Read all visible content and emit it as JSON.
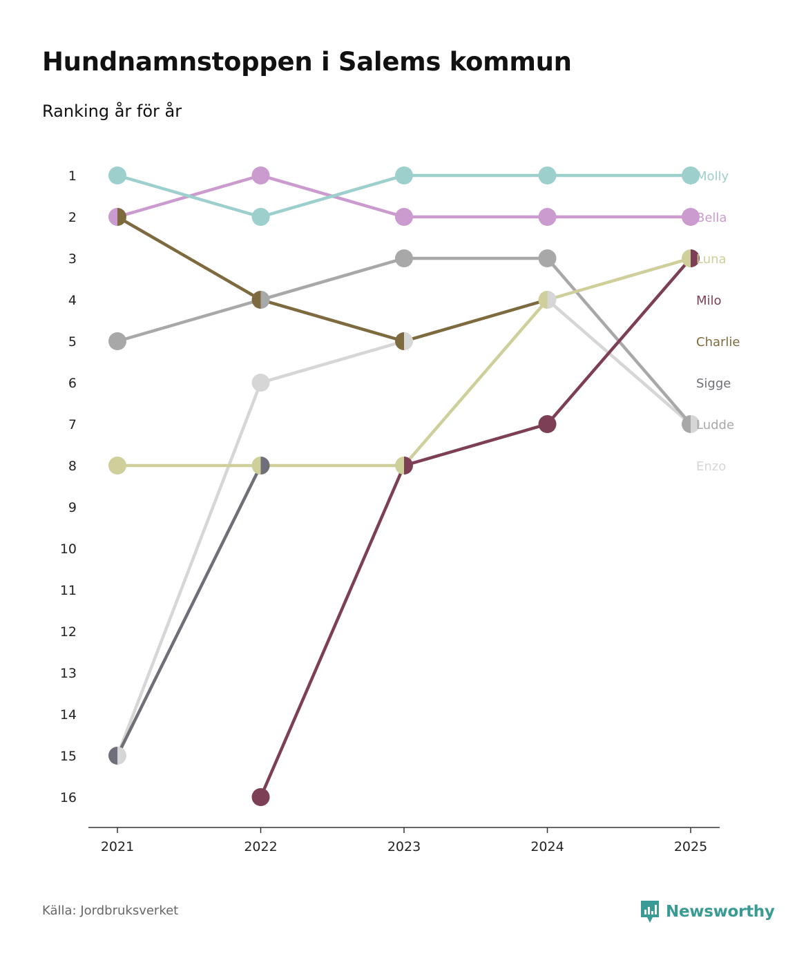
{
  "title": "Hundnamnstoppen i Salems kommun",
  "subtitle": "Ranking år för år",
  "source": "Källa: Jordbruksverket",
  "brand": {
    "name": "Newsworthy",
    "icon": "newsworthy-logo-icon",
    "color": "#3a9a94"
  },
  "chart_data": {
    "type": "line",
    "subtype": "bump",
    "title": "Hundnamnstoppen i Salems kommun",
    "subtitle": "Ranking år för år",
    "x": [
      "2021",
      "2022",
      "2023",
      "2024",
      "2025"
    ],
    "y_ticks": [
      "1",
      "2",
      "3",
      "4",
      "5",
      "6",
      "7",
      "8",
      "9",
      "10",
      "11",
      "12",
      "13",
      "14",
      "15",
      "16"
    ],
    "ylim": [
      1,
      16
    ],
    "y_inverted": true,
    "grid": false,
    "legend": "right end labels",
    "series": [
      {
        "name": "Molly",
        "color": "#9dcfcc",
        "values": [
          1,
          2,
          1,
          1,
          1
        ]
      },
      {
        "name": "Bella",
        "color": "#cb9bcf",
        "values": [
          2,
          1,
          2,
          2,
          2
        ]
      },
      {
        "name": "Luna",
        "color": "#cfcf9b",
        "values": [
          8,
          8,
          8,
          4,
          3
        ]
      },
      {
        "name": "Milo",
        "color": "#7d3f55",
        "values": [
          null,
          16,
          8,
          7,
          3
        ]
      },
      {
        "name": "Charlie",
        "color": "#7d6a3f",
        "values": [
          2,
          4,
          5,
          4,
          null
        ]
      },
      {
        "name": "Sigge",
        "color": "#6e6f78",
        "values": [
          15,
          8,
          null,
          null,
          null
        ]
      },
      {
        "name": "Ludde",
        "color": "#a8a8a8",
        "values": [
          5,
          4,
          3,
          3,
          7
        ]
      },
      {
        "name": "Enzo",
        "color": "#d6d6d6",
        "values": [
          15,
          6,
          5,
          4,
          7
        ]
      }
    ]
  }
}
